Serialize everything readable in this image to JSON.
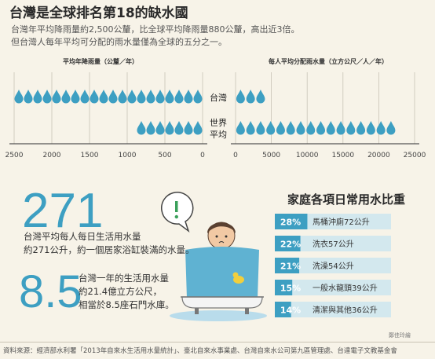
{
  "title": "台灣是全球排名第18的缺水國",
  "intro": [
    "台灣年平均降雨量約2,500公釐，比全球平均降雨量880公釐，高出近3倍。",
    "但台灣人每年平均可分配的雨水量僅為全球的五分之一。"
  ],
  "colors": {
    "drop": "#3d9fc2",
    "bar_dark": "#3d9fc2",
    "bar_light": "#d3e8ee",
    "axis": "#555555",
    "grid": "#c8c3b6",
    "big_number": "#3d9fc2"
  },
  "chart_data": [
    {
      "type": "pictograph",
      "title": "平均年降雨量（公釐／年）",
      "axis_direction": "right-to-left",
      "xlim": [
        0,
        2500
      ],
      "ticks": [
        2500,
        2000,
        1500,
        1000,
        500,
        0
      ],
      "unit_per_icon": 125,
      "series": [
        {
          "name": "台灣",
          "value": 2500
        },
        {
          "name": "世界平均",
          "value": 880
        }
      ]
    },
    {
      "type": "pictograph",
      "title": "每人平均分配雨水量（立方公尺／人／年）",
      "axis_direction": "left-to-right",
      "xlim": [
        0,
        25000
      ],
      "ticks": [
        0,
        5000,
        10000,
        15000,
        20000,
        25000
      ],
      "unit_per_icon": 1400,
      "series": [
        {
          "name": "台灣",
          "value": 4500
        },
        {
          "name": "世界平均",
          "value": 22000
        }
      ]
    },
    {
      "type": "bar",
      "title": "家庭各項日常用水比重",
      "xlim": [
        0,
        100
      ],
      "series": [
        {
          "percent_label": "28%",
          "percent": 28,
          "label": "馬桶沖廁72公升"
        },
        {
          "percent_label": "22%",
          "percent": 22,
          "label": "洗衣57公升"
        },
        {
          "percent_label": "21%",
          "percent": 21,
          "label": "洗澡54公升"
        },
        {
          "percent_label": "15%",
          "percent": 15,
          "label": "一般水龍頭39公升"
        },
        {
          "percent_label": "14%",
          "percent": 14,
          "label": "清潔與其他36公升"
        }
      ]
    }
  ],
  "row_labels": [
    "台灣",
    "世界",
    "平均"
  ],
  "stats": {
    "daily_number": "271",
    "daily_desc": [
      "台灣平均每人每日生活用水量",
      "約271公升，約一個居家浴缸裝滿的水量。"
    ],
    "annual_number": "8.5",
    "annual_desc": [
      "台灣一年的生活用水量",
      "約21.4億立方公尺，",
      "相當於8.5座石門水庫。"
    ]
  },
  "usage_title": "家庭各項日常用水比重",
  "credit": "鄭佳玲繪",
  "footer": "資料來源：經濟部水利署「2013年自來水生活用水量統計」、臺北自來水事業處、台灣自來水公司第九區管理處、台達電子文教基金會"
}
